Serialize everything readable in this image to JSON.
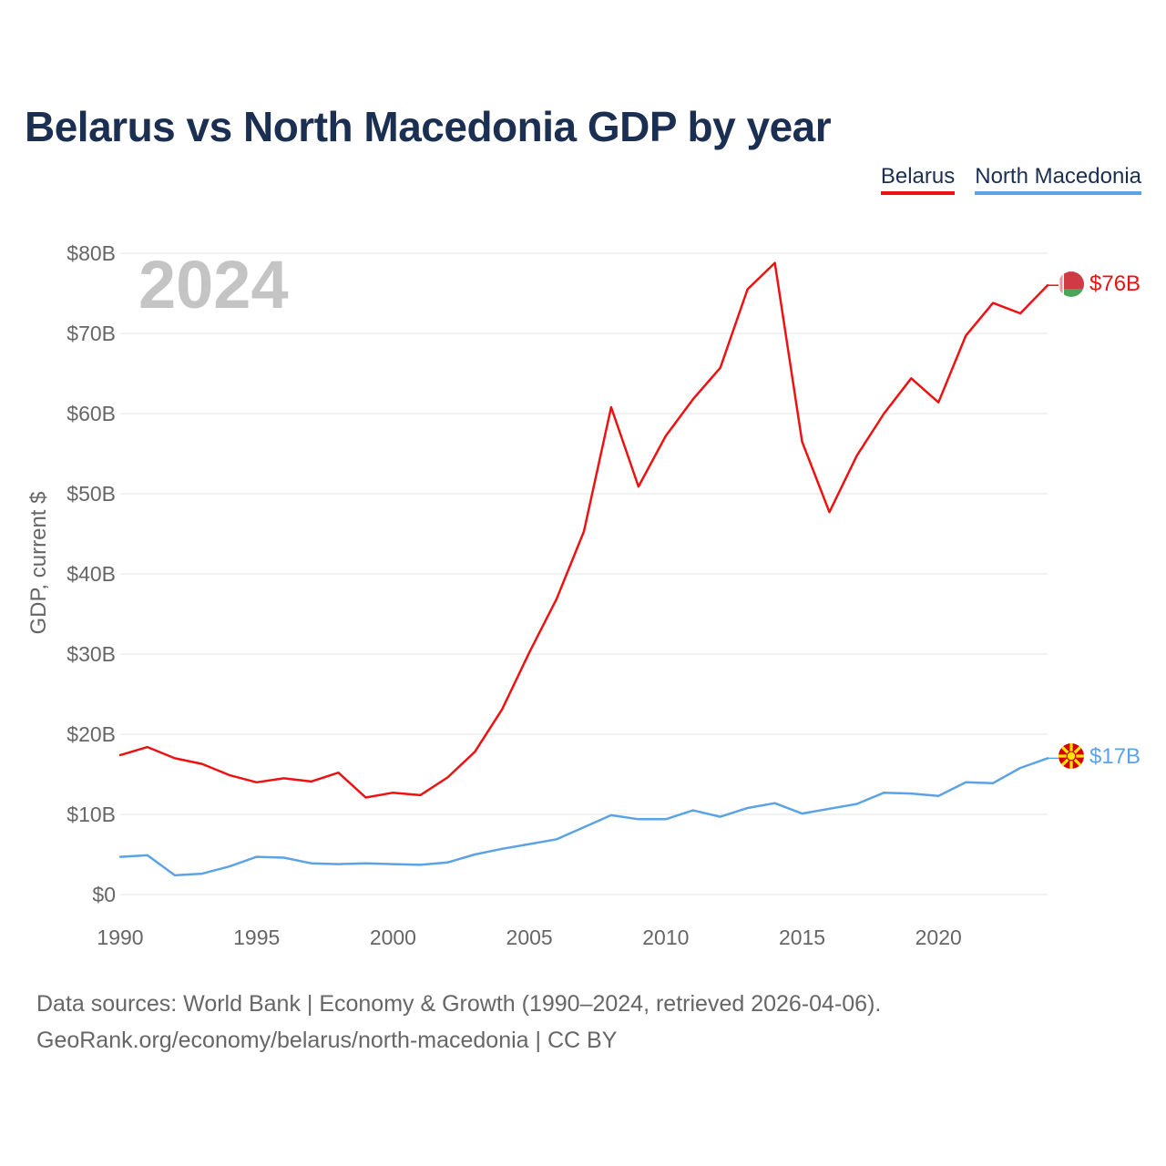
{
  "title": "Belarus vs North Macedonia GDP by year",
  "year_watermark": "2024",
  "footer": {
    "line1": "Data sources: World Bank | Economy & Growth (1990–2024, retrieved 2026-04-06).",
    "line2": "GeoRank.org/economy/belarus/north-macedonia | CC BY"
  },
  "chart_data": {
    "type": "line",
    "title": "Belarus vs North Macedonia GDP by year",
    "ylabel": "GDP, current $",
    "xlabel": "",
    "ylim": [
      0,
      80
    ],
    "xlim": [
      1990,
      2024
    ],
    "yticks": [
      0,
      10,
      20,
      30,
      40,
      50,
      60,
      70,
      80
    ],
    "ytick_labels": [
      "$0",
      "$10B",
      "$20B",
      "$30B",
      "$40B",
      "$50B",
      "$60B",
      "$70B",
      "$80B"
    ],
    "xticks": [
      1990,
      1995,
      2000,
      2005,
      2010,
      2015,
      2020
    ],
    "xtick_labels": [
      "1990",
      "1995",
      "2000",
      "2005",
      "2010",
      "2015",
      "2020"
    ],
    "grid": true,
    "legend_position": "top-right",
    "x": [
      1990,
      1991,
      1992,
      1993,
      1994,
      1995,
      1996,
      1997,
      1998,
      1999,
      2000,
      2001,
      2002,
      2003,
      2004,
      2005,
      2006,
      2007,
      2008,
      2009,
      2010,
      2011,
      2012,
      2013,
      2014,
      2015,
      2016,
      2017,
      2018,
      2019,
      2020,
      2021,
      2022,
      2023,
      2024
    ],
    "series": [
      {
        "name": "Belarus",
        "color": "#ee1111",
        "end_label": "$76B",
        "flag": "belarus-flag",
        "values": [
          17.4,
          18.4,
          17.0,
          16.3,
          14.9,
          14.0,
          14.5,
          14.1,
          15.2,
          12.1,
          12.7,
          12.4,
          14.6,
          17.8,
          23.1,
          30.2,
          36.9,
          45.3,
          60.8,
          50.9,
          57.2,
          61.8,
          65.7,
          75.5,
          78.8,
          56.5,
          47.7,
          54.7,
          60.0,
          64.4,
          61.4,
          69.7,
          73.8,
          72.5,
          76.0
        ]
      },
      {
        "name": "North Macedonia",
        "color": "#5ca3e6",
        "end_label": "$17B",
        "flag": "north-macedonia-flag",
        "values": [
          4.7,
          4.9,
          2.4,
          2.6,
          3.5,
          4.7,
          4.6,
          3.9,
          3.8,
          3.9,
          3.8,
          3.7,
          4.0,
          5.0,
          5.7,
          6.3,
          6.9,
          8.4,
          9.9,
          9.4,
          9.4,
          10.5,
          9.7,
          10.8,
          11.4,
          10.1,
          10.7,
          11.3,
          12.7,
          12.6,
          12.3,
          14.0,
          13.9,
          15.8,
          17.0
        ]
      }
    ]
  }
}
